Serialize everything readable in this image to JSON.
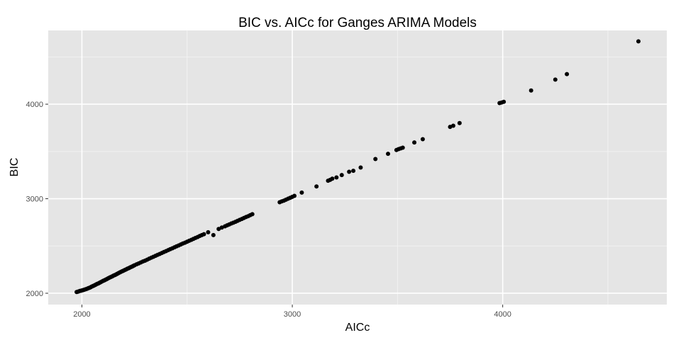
{
  "chart_data": {
    "type": "scatter",
    "title": "BIC vs. AICc for Ganges ARIMA Models",
    "xlabel": "AICc",
    "ylabel": "BIC",
    "xlim": [
      1840,
      4780
    ],
    "ylim": [
      1880,
      4780
    ],
    "x_ticks": [
      2000,
      3000,
      4000
    ],
    "y_ticks": [
      2000,
      3000,
      4000
    ],
    "x_minor_ticks": [
      2500,
      3500,
      4500
    ],
    "y_minor_ticks": [
      2500,
      3500,
      4500
    ],
    "grid": true,
    "colors": {
      "panel": "#e5e5e5",
      "grid_major": "#ffffff",
      "grid_minor": "#f2f2f2",
      "point": "#000000"
    },
    "series": [
      {
        "x": [
          1975,
          1980,
          1985,
          1990,
          1995,
          2000,
          2005,
          2010,
          2015,
          2020,
          2025,
          2030,
          2035,
          2040,
          2045,
          2050,
          2055,
          2060,
          2065,
          2070,
          2075,
          2080,
          2085,
          2090,
          2095,
          2100,
          2105,
          2110,
          2115,
          2120,
          2125,
          2130,
          2135,
          2140,
          2145,
          2150,
          2155,
          2160,
          2165,
          2170,
          2175,
          2180,
          2185,
          2190,
          2195,
          2200,
          2205,
          2210,
          2215,
          2220,
          2225,
          2230,
          2235,
          2240,
          2245,
          2250,
          2260,
          2270,
          2280,
          2290,
          2300,
          2310,
          2320,
          2330,
          2340,
          2350,
          2360,
          2370,
          2380,
          2390,
          2400,
          2410,
          2420,
          2430,
          2440,
          2450,
          2460,
          2470,
          2480,
          2490,
          2500,
          2510,
          2520,
          2530,
          2540,
          2550,
          2560,
          2570,
          2580,
          2600,
          2625,
          2650,
          2665,
          2680,
          2690,
          2700,
          2710,
          2720,
          2730,
          2740,
          2750,
          2760,
          2770,
          2780,
          2790,
          2800,
          2810,
          2940,
          2950,
          2960,
          2970,
          2980,
          2990,
          3000,
          3010,
          3045,
          3115,
          3170,
          3180,
          3190,
          3210,
          3235,
          3270,
          3290,
          3325,
          3395,
          3455,
          3495,
          3505,
          3515,
          3525,
          3580,
          3620,
          3750,
          3765,
          3795,
          3985,
          3995,
          4005,
          4135,
          4250,
          4305,
          4645
        ],
        "y": [
          2013,
          2016,
          2020,
          2024,
          2026,
          2030,
          2033,
          2036,
          2040,
          2044,
          2048,
          2053,
          2057,
          2062,
          2068,
          2074,
          2079,
          2084,
          2090,
          2096,
          2101,
          2106,
          2112,
          2118,
          2124,
          2130,
          2135,
          2140,
          2146,
          2152,
          2158,
          2164,
          2169,
          2174,
          2180,
          2186,
          2191,
          2196,
          2202,
          2208,
          2214,
          2220,
          2226,
          2231,
          2236,
          2242,
          2247,
          2252,
          2258,
          2263,
          2268,
          2274,
          2279,
          2284,
          2290,
          2296,
          2306,
          2316,
          2326,
          2336,
          2345,
          2355,
          2366,
          2376,
          2386,
          2396,
          2406,
          2416,
          2426,
          2436,
          2446,
          2456,
          2466,
          2476,
          2486,
          2496,
          2506,
          2516,
          2526,
          2535,
          2545,
          2555,
          2565,
          2575,
          2585,
          2595,
          2606,
          2615,
          2625,
          2645,
          2615,
          2680,
          2695,
          2708,
          2718,
          2728,
          2738,
          2746,
          2756,
          2766,
          2776,
          2786,
          2796,
          2806,
          2815,
          2826,
          2836,
          2963,
          2972,
          2980,
          2990,
          3000,
          3010,
          3020,
          3030,
          3065,
          3130,
          3190,
          3200,
          3212,
          3225,
          3250,
          3285,
          3295,
          3330,
          3420,
          3475,
          3515,
          3525,
          3532,
          3540,
          3595,
          3630,
          3760,
          3772,
          3800,
          4012,
          4018,
          4025,
          4145,
          4260,
          4318,
          4665
        ]
      }
    ]
  }
}
